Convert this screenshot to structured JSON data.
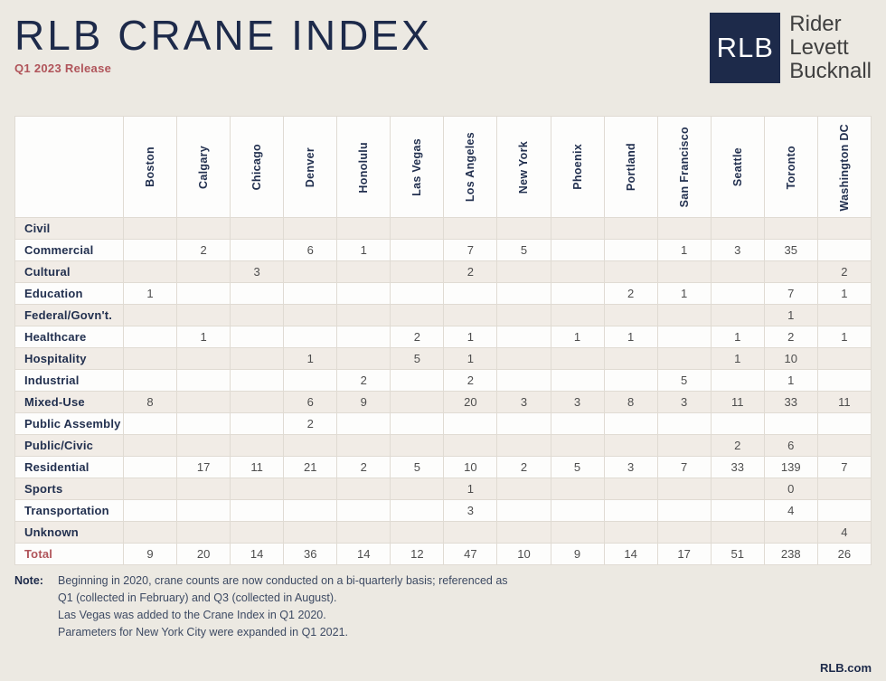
{
  "colors": {
    "navy": "#1d2a4a",
    "accent_red": "#b0545a",
    "value_text": "#4e4e4e",
    "row_beige": "#f1ece6",
    "row_white": "#fdfdfc",
    "page_bg": "#ece9e2",
    "grid_line": "#e0dbd3"
  },
  "header": {
    "title": "RLB CRANE INDEX",
    "subtitle": "Q1 2023 Release"
  },
  "logo": {
    "square_text": "RLB",
    "lines": [
      "Rider",
      "Levett",
      "Bucknall"
    ]
  },
  "chart_data": {
    "type": "table",
    "title": "RLB Crane Index — Q1 2023 Release",
    "columns": [
      "Boston",
      "Calgary",
      "Chicago",
      "Denver",
      "Honolulu",
      "Las Vegas",
      "Los Angeles",
      "New York",
      "Phoenix",
      "Portland",
      "San Francisco",
      "Seattle",
      "Toronto",
      "Washington DC"
    ],
    "rows": [
      {
        "label": "Civil",
        "values": [
          "",
          "",
          "",
          "",
          "",
          "",
          "",
          "",
          "",
          "",
          "",
          "",
          "",
          ""
        ]
      },
      {
        "label": "Commercial",
        "values": [
          "",
          "2",
          "",
          "6",
          "1",
          "",
          "7",
          "5",
          "",
          "",
          "1",
          "3",
          "35",
          ""
        ]
      },
      {
        "label": "Cultural",
        "values": [
          "",
          "",
          "3",
          "",
          "",
          "",
          "2",
          "",
          "",
          "",
          "",
          "",
          "",
          "2"
        ]
      },
      {
        "label": "Education",
        "values": [
          "1",
          "",
          "",
          "",
          "",
          "",
          "",
          "",
          "",
          "2",
          "1",
          "",
          "7",
          "1"
        ]
      },
      {
        "label": "Federal/Govn't.",
        "values": [
          "",
          "",
          "",
          "",
          "",
          "",
          "",
          "",
          "",
          "",
          "",
          "",
          "1",
          ""
        ]
      },
      {
        "label": "Healthcare",
        "values": [
          "",
          "1",
          "",
          "",
          "",
          "2",
          "1",
          "",
          "1",
          "1",
          "",
          "1",
          "2",
          "1"
        ]
      },
      {
        "label": "Hospitality",
        "values": [
          "",
          "",
          "",
          "1",
          "",
          "5",
          "1",
          "",
          "",
          "",
          "",
          "1",
          "10",
          ""
        ]
      },
      {
        "label": "Industrial",
        "values": [
          "",
          "",
          "",
          "",
          "2",
          "",
          "2",
          "",
          "",
          "",
          "5",
          "",
          "1",
          ""
        ]
      },
      {
        "label": "Mixed-Use",
        "values": [
          "8",
          "",
          "",
          "6",
          "9",
          "",
          "20",
          "3",
          "3",
          "8",
          "3",
          "11",
          "33",
          "11"
        ]
      },
      {
        "label": "Public Assembly",
        "values": [
          "",
          "",
          "",
          "2",
          "",
          "",
          "",
          "",
          "",
          "",
          "",
          "",
          "",
          ""
        ]
      },
      {
        "label": "Public/Civic",
        "values": [
          "",
          "",
          "",
          "",
          "",
          "",
          "",
          "",
          "",
          "",
          "",
          "2",
          "6",
          ""
        ]
      },
      {
        "label": "Residential",
        "values": [
          "",
          "17",
          "11",
          "21",
          "2",
          "5",
          "10",
          "2",
          "5",
          "3",
          "7",
          "33",
          "139",
          "7"
        ]
      },
      {
        "label": "Sports",
        "values": [
          "",
          "",
          "",
          "",
          "",
          "",
          "1",
          "",
          "",
          "",
          "",
          "",
          "0",
          ""
        ]
      },
      {
        "label": "Transportation",
        "values": [
          "",
          "",
          "",
          "",
          "",
          "",
          "3",
          "",
          "",
          "",
          "",
          "",
          "4",
          ""
        ]
      },
      {
        "label": "Unknown",
        "values": [
          "",
          "",
          "",
          "",
          "",
          "",
          "",
          "",
          "",
          "",
          "",
          "",
          "",
          "4"
        ]
      },
      {
        "label": "Total",
        "total": true,
        "values": [
          "9",
          "20",
          "14",
          "36",
          "14",
          "12",
          "47",
          "10",
          "9",
          "14",
          "17",
          "51",
          "238",
          "26"
        ]
      }
    ]
  },
  "note": {
    "label": "Note:",
    "lines": [
      "Beginning in 2020, crane counts are now conducted on a bi-quarterly basis; referenced as",
      "Q1 (collected in February) and Q3 (collected in August).",
      "Las Vegas was added to the Crane Index in Q1 2020.",
      "Parameters for New York City were expanded in Q1 2021."
    ]
  },
  "footer": {
    "url": "RLB.com"
  }
}
